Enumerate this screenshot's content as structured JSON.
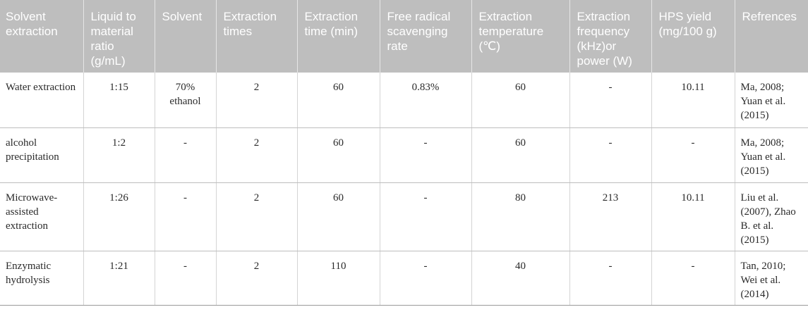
{
  "headers": [
    "Solvent extraction",
    "Liquid to material ratio (g/mL)",
    "Solvent",
    "Extraction times",
    "Extraction time (min)",
    "Free radical scavenging rate",
    "Extraction temperature (℃)",
    "Extraction frequency (kHz)or power (W)",
    "HPS yield (mg/100 g)",
    "Refrences"
  ],
  "rows": [
    [
      "Water extraction",
      "1:15",
      "70% ethanol",
      "2",
      "60",
      "0.83%",
      "60",
      "-",
      "10.11",
      "Ma, 2008; Yuan et al. (2015)"
    ],
    [
      "alcohol precipitation",
      "1:2",
      "-",
      "2",
      "60",
      "-",
      "60",
      "-",
      "-",
      "Ma, 2008; Yuan et al. (2015)"
    ],
    [
      "Microwave-assisted extraction",
      "1:26",
      "-",
      "2",
      "60",
      "-",
      "80",
      "213",
      "10.11",
      "Liu et al. (2007), Zhao B. et al. (2015)"
    ],
    [
      "Enzymatic hydrolysis",
      "1:21",
      "-",
      "2",
      "110",
      "-",
      "40",
      "-",
      "-",
      "Tan, 2010; Wei et al. (2014)"
    ]
  ]
}
